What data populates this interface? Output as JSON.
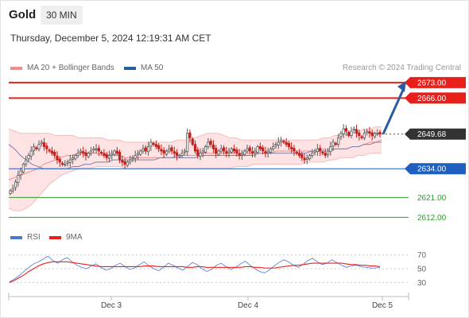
{
  "header": {
    "instrument": "Gold",
    "timeframe": "30 MIN",
    "datetime": "Thursday, December 5, 2024 12:19:31 AM CET"
  },
  "legend": {
    "bollinger": {
      "label": "MA 20 + Bollinger Bands",
      "color": "#f08c8c"
    },
    "ma50": {
      "label": "MA 50",
      "color": "#2b5c9e"
    },
    "rsi": {
      "label": "RSI",
      "color": "#4a78d6"
    },
    "rsi_ma": {
      "label": "9MA",
      "color": "#e8201c"
    },
    "credit": "Research © 2024 Trading Central"
  },
  "chart_data": [
    {
      "type": "candlestick",
      "title": "Gold",
      "timeframe": "30 MIN",
      "x_ticks": [
        "Dec 3",
        "Dec 4",
        "Dec 5"
      ],
      "ylim": [
        2606,
        2678
      ],
      "current_price": {
        "value": 2649.68,
        "label": "2649.68",
        "color": "#333333"
      },
      "levels": [
        {
          "value": 2673.0,
          "label": "2673.00",
          "kind": "resistance",
          "color": "#e8201c"
        },
        {
          "value": 2666.0,
          "label": "2666.00",
          "kind": "resistance",
          "color": "#e8201c"
        },
        {
          "value": 2634.0,
          "label": "2634.00",
          "kind": "pivot",
          "color": "#1f5fbf"
        },
        {
          "value": 2621.0,
          "label": "2621.00",
          "kind": "support",
          "color": "#2e9a2e"
        },
        {
          "value": 2612.0,
          "label": "2612.00",
          "kind": "support",
          "color": "#2e9a2e"
        }
      ],
      "projection": {
        "from": 2649.68,
        "to": 2673.0,
        "direction": "up"
      },
      "closes": [
        2624,
        2625,
        2628,
        2631,
        2633,
        2636,
        2638,
        2640,
        2642,
        2644,
        2643,
        2645,
        2646,
        2644,
        2643,
        2642,
        2641,
        2640,
        2638,
        2637,
        2636,
        2636,
        2637,
        2638,
        2639,
        2640,
        2641,
        2642,
        2641,
        2640,
        2641,
        2642,
        2643,
        2643,
        2642,
        2641,
        2640,
        2639,
        2640,
        2641,
        2642,
        2641,
        2638,
        2637,
        2636,
        2637,
        2638,
        2639,
        2640,
        2641,
        2642,
        2643,
        2642,
        2644,
        2646,
        2645,
        2644,
        2643,
        2642,
        2641,
        2642,
        2643,
        2642,
        2641,
        2640,
        2640,
        2641,
        2642,
        2650,
        2648,
        2645,
        2642,
        2640,
        2641,
        2642,
        2644,
        2646,
        2645,
        2643,
        2641,
        2642,
        2643,
        2642,
        2641,
        2642,
        2643,
        2642,
        2641,
        2640,
        2641,
        2642,
        2643,
        2642,
        2641,
        2642,
        2644,
        2643,
        2642,
        2641,
        2642,
        2643,
        2644,
        2645,
        2646,
        2647,
        2646,
        2645,
        2644,
        2643,
        2642,
        2641,
        2640,
        2639,
        2638,
        2639,
        2640,
        2641,
        2642,
        2643,
        2642,
        2641,
        2640,
        2642,
        2644,
        2646,
        2645,
        2648,
        2650,
        2652,
        2651,
        2649,
        2651,
        2652,
        2650,
        2649,
        2648,
        2650,
        2651,
        2650,
        2649,
        2650,
        2650,
        2649.68
      ],
      "bollinger_mid": [
        2629,
        2630,
        2631,
        2632,
        2633,
        2634,
        2636,
        2637,
        2638,
        2639,
        2640,
        2640,
        2641,
        2641,
        2641,
        2641,
        2640,
        2640,
        2640,
        2640,
        2639,
        2639,
        2639,
        2639,
        2639,
        2639,
        2639,
        2639,
        2639,
        2640,
        2640,
        2640,
        2640,
        2641,
        2641,
        2641,
        2641,
        2641,
        2641,
        2641,
        2641,
        2641,
        2641,
        2641,
        2641,
        2641,
        2642,
        2642,
        2642,
        2642,
        2642,
        2642,
        2642,
        2642,
        2643,
        2643,
        2643,
        2643,
        2643,
        2644,
        2644,
        2645,
        2646,
        2646,
        2647
      ],
      "bollinger_upper": [
        2652,
        2651,
        2650,
        2650,
        2650,
        2650,
        2650,
        2650,
        2649,
        2649,
        2649,
        2649,
        2648,
        2648,
        2648,
        2648,
        2648,
        2647,
        2647,
        2647,
        2646,
        2646,
        2646,
        2646,
        2646,
        2646,
        2646,
        2646,
        2646,
        2647,
        2647,
        2647,
        2648,
        2649,
        2650,
        2650,
        2650,
        2649,
        2648,
        2648,
        2647,
        2647,
        2647,
        2647,
        2647,
        2647,
        2647,
        2647,
        2647,
        2647,
        2647,
        2647,
        2647,
        2647,
        2648,
        2648,
        2649,
        2649,
        2650,
        2650,
        2651,
        2652,
        2652,
        2653,
        2653
      ],
      "bollinger_lower": [
        2616,
        2615,
        2615,
        2616,
        2618,
        2621,
        2624,
        2627,
        2629,
        2631,
        2632,
        2633,
        2634,
        2634,
        2634,
        2635,
        2635,
        2635,
        2635,
        2635,
        2634,
        2634,
        2634,
        2634,
        2634,
        2634,
        2634,
        2634,
        2634,
        2634,
        2634,
        2634,
        2634,
        2634,
        2634,
        2634,
        2634,
        2634,
        2634,
        2635,
        2635,
        2635,
        2636,
        2636,
        2636,
        2636,
        2636,
        2636,
        2636,
        2636,
        2636,
        2637,
        2637,
        2637,
        2637,
        2638,
        2638,
        2639,
        2639,
        2639,
        2640,
        2640,
        2641,
        2641,
        2641
      ],
      "ma50": [
        2645,
        2643,
        2640,
        2638,
        2636,
        2635,
        2634,
        2634,
        2634,
        2634,
        2634,
        2635,
        2635,
        2636,
        2636,
        2637,
        2637,
        2637,
        2638,
        2638,
        2638,
        2638,
        2638,
        2638,
        2638,
        2638,
        2639,
        2639,
        2639,
        2639,
        2639,
        2639,
        2639,
        2640,
        2640,
        2640,
        2640,
        2640,
        2640,
        2640,
        2640,
        2640,
        2640,
        2641,
        2641,
        2641,
        2641,
        2641,
        2641,
        2641,
        2641,
        2641,
        2642,
        2642,
        2642,
        2642,
        2643,
        2643,
        2643,
        2644,
        2644,
        2645,
        2645,
        2646,
        2646
      ]
    },
    {
      "type": "line",
      "title": "RSI",
      "ylim": [
        20,
        80
      ],
      "y_ticks": [
        70,
        50,
        30
      ],
      "x_ticks": [
        "Dec 3",
        "Dec 4",
        "Dec 5"
      ],
      "series": [
        {
          "name": "RSI",
          "color": "#4a78d6",
          "values": [
            31,
            35,
            40,
            46,
            52,
            57,
            60,
            64,
            68,
            62,
            58,
            63,
            66,
            60,
            55,
            52,
            50,
            54,
            57,
            52,
            48,
            50,
            55,
            58,
            53,
            49,
            51,
            56,
            60,
            54,
            50,
            47,
            52,
            58,
            55,
            51,
            48,
            53,
            59,
            56,
            50,
            46,
            49,
            55,
            58,
            53,
            49,
            52,
            57,
            61,
            55,
            50,
            46,
            44,
            48,
            54,
            59,
            63,
            60,
            55,
            52,
            56,
            62,
            65,
            60,
            56,
            58,
            63,
            59,
            55,
            52,
            54,
            55,
            53,
            52,
            51,
            51,
            52
          ]
        },
        {
          "name": "9MA",
          "color": "#e8201c",
          "values": [
            30,
            33,
            37,
            41,
            46,
            50,
            54,
            57,
            59,
            60,
            60,
            60,
            60,
            59,
            58,
            57,
            56,
            55,
            54,
            53,
            53,
            53,
            53,
            53,
            53,
            53,
            53,
            53,
            54,
            54,
            54,
            53,
            53,
            53,
            53,
            53,
            53,
            52,
            52,
            53,
            53,
            52,
            52,
            52,
            52,
            52,
            52,
            52,
            52,
            53,
            53,
            52,
            52,
            51,
            51,
            51,
            52,
            53,
            54,
            55,
            55,
            56,
            57,
            58,
            58,
            58,
            58,
            58,
            58,
            58,
            57,
            56,
            56,
            55,
            55,
            54,
            54,
            53
          ]
        }
      ]
    }
  ]
}
